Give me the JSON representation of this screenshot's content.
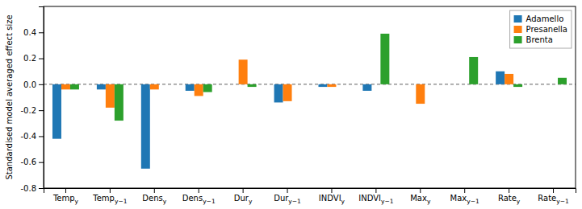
{
  "chart_data": {
    "type": "bar",
    "categories": [
      "Tempy",
      "Tempy−1",
      "Densy",
      "Densy−1",
      "Dury",
      "Dury−1",
      "INDVIy",
      "INDVIy−1",
      "Maxy",
      "Maxy−1",
      "Ratey",
      "Ratey−1"
    ],
    "series": [
      {
        "name": "Adamello",
        "values": [
          -0.42,
          -0.04,
          -0.65,
          -0.05,
          0.0,
          -0.14,
          -0.02,
          -0.05,
          0.0,
          0.0,
          0.1,
          0.0
        ]
      },
      {
        "name": "Presanella",
        "values": [
          -0.04,
          -0.18,
          -0.04,
          -0.09,
          0.19,
          -0.13,
          -0.02,
          0.0,
          -0.15,
          0.0,
          0.08,
          0.0
        ]
      },
      {
        "name": "Brenta",
        "values": [
          -0.04,
          -0.28,
          0.0,
          -0.06,
          -0.02,
          0.0,
          0.0,
          0.39,
          0.0,
          0.21,
          -0.02,
          0.05
        ]
      }
    ],
    "ylabel": "Standardised model averaged effect size",
    "ylim": [
      -0.8,
      0.6
    ],
    "yticks": [
      -0.8,
      -0.6,
      -0.4,
      -0.2,
      {
        "value": 0,
        "label": "0.0"
      },
      0.2,
      0.4
    ],
    "grid": false,
    "legend": "upper right"
  }
}
